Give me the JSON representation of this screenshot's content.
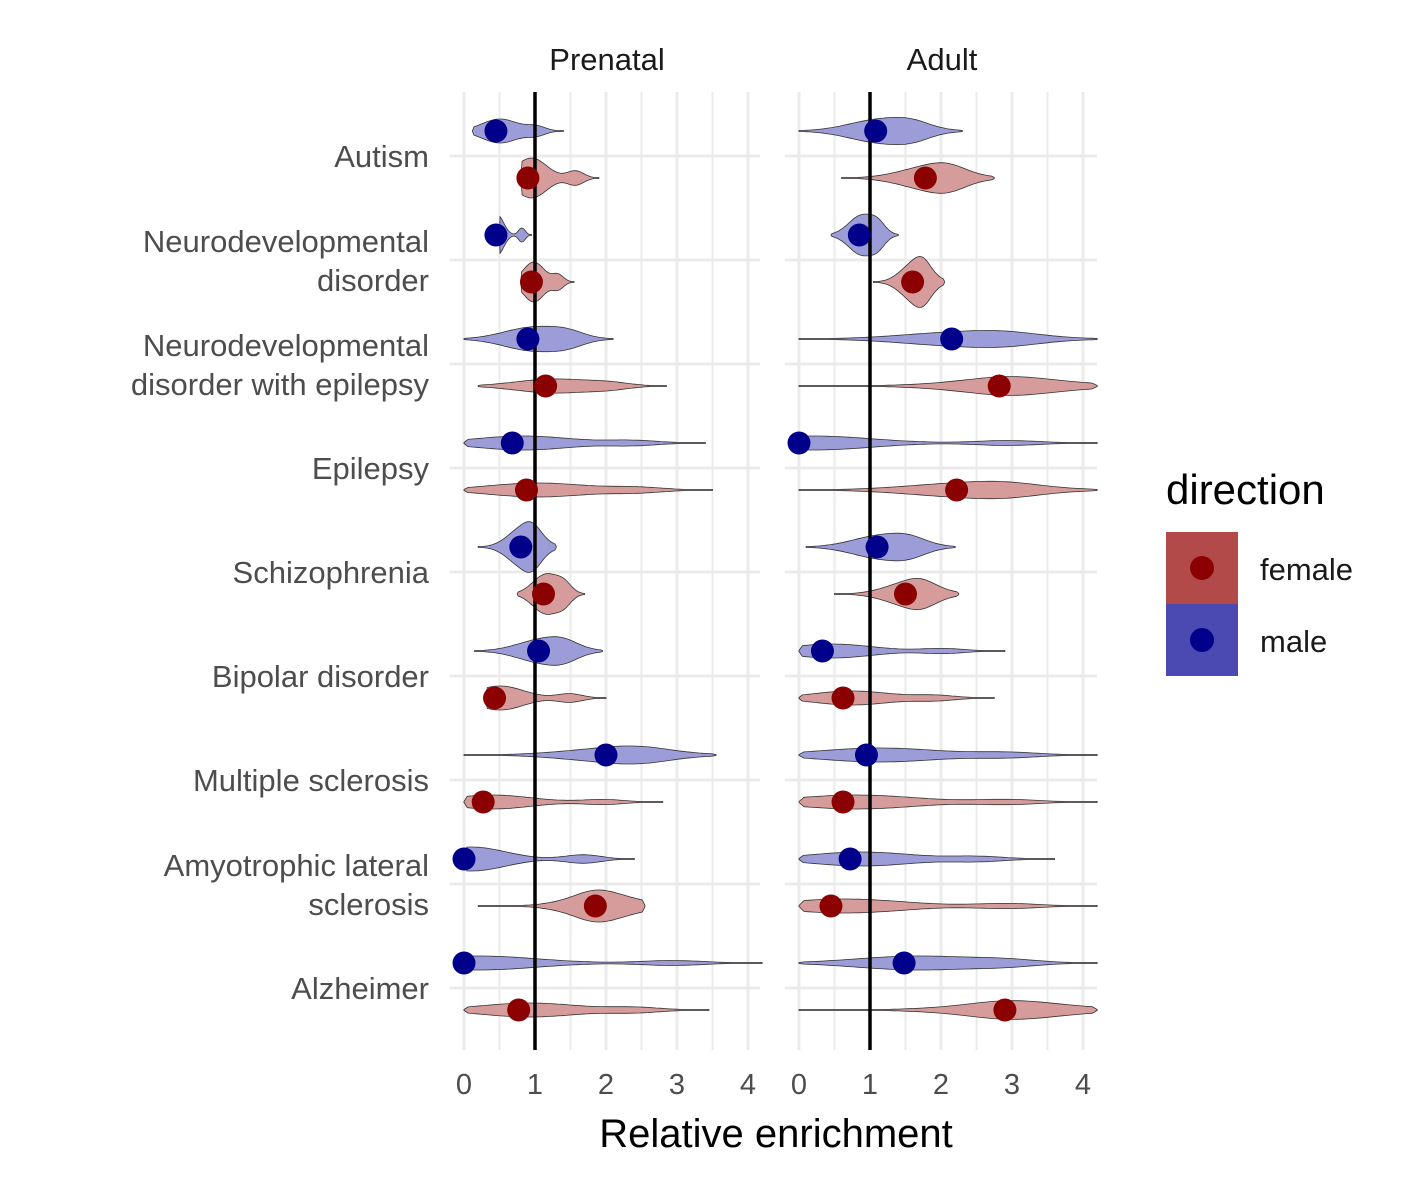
{
  "chart_data": {
    "type": "violin",
    "xlabel": "Relative enrichment",
    "xlim": [
      0,
      4.2
    ],
    "xticks": [
      0,
      1,
      2,
      3,
      4
    ],
    "reference_line": 1,
    "facets": [
      "Prenatal",
      "Adult"
    ],
    "legend": {
      "title": "direction",
      "position": "right",
      "entries": [
        {
          "label": "female",
          "fill": "#b24a4a",
          "point": "#8b0000"
        },
        {
          "label": "male",
          "fill": "#4a4ab2",
          "point": "#00008b"
        }
      ]
    },
    "categories": [
      {
        "label": [
          "Autism"
        ]
      },
      {
        "label": [
          "Neurodevelopmental",
          "disorder"
        ]
      },
      {
        "label": [
          "Neurodevelopmental",
          "disorder with epilepsy"
        ]
      },
      {
        "label": [
          "Epilepsy"
        ]
      },
      {
        "label": [
          "Schizophrenia"
        ]
      },
      {
        "label": [
          "Bipolar disorder"
        ]
      },
      {
        "label": [
          "Multiple sclerosis"
        ]
      },
      {
        "label": [
          "Amyotrophic lateral",
          "sclerosis"
        ]
      },
      {
        "label": [
          "Alzheimer"
        ]
      }
    ],
    "series": [
      {
        "name": "male",
        "facet": "Prenatal",
        "points": [
          0.45,
          0.45,
          0.9,
          0.68,
          0.8,
          1.05,
          2.0,
          0.0,
          0.0
        ],
        "ranges": [
          [
            0.12,
            1.4
          ],
          [
            0.5,
            0.95
          ],
          [
            0.0,
            2.1
          ],
          [
            0.0,
            3.4
          ],
          [
            0.2,
            1.3
          ],
          [
            0.15,
            1.95
          ],
          [
            0.0,
            3.55
          ],
          [
            0.0,
            2.4
          ],
          [
            0.0,
            4.2
          ]
        ]
      },
      {
        "name": "female",
        "facet": "Prenatal",
        "points": [
          0.9,
          0.95,
          1.15,
          0.88,
          1.12,
          0.43,
          0.27,
          1.85,
          0.77
        ],
        "ranges": [
          [
            0.8,
            1.9
          ],
          [
            0.8,
            1.55
          ],
          [
            0.2,
            2.85
          ],
          [
            0.0,
            3.5
          ],
          [
            0.75,
            1.7
          ],
          [
            0.3,
            2.0
          ],
          [
            0.0,
            2.8
          ],
          [
            0.2,
            2.55
          ],
          [
            0.0,
            3.45
          ]
        ]
      },
      {
        "name": "male",
        "facet": "Adult",
        "points": [
          1.08,
          0.85,
          2.15,
          0.0,
          1.1,
          0.33,
          0.95,
          0.72,
          1.48
        ],
        "ranges": [
          [
            0.0,
            2.3
          ],
          [
            0.45,
            1.4
          ],
          [
            0.0,
            4.2
          ],
          [
            0.0,
            4.2
          ],
          [
            0.1,
            2.2
          ],
          [
            0.0,
            2.9
          ],
          [
            0.0,
            4.2
          ],
          [
            0.0,
            3.6
          ],
          [
            0.0,
            4.2
          ]
        ]
      },
      {
        "name": "female",
        "facet": "Adult",
        "points": [
          1.78,
          1.6,
          2.82,
          2.22,
          1.5,
          0.62,
          0.62,
          0.45,
          2.9
        ],
        "ranges": [
          [
            0.6,
            2.75
          ],
          [
            1.05,
            2.05
          ],
          [
            0.0,
            4.2
          ],
          [
            0.0,
            4.2
          ],
          [
            0.5,
            2.25
          ],
          [
            0.0,
            2.75
          ],
          [
            0.0,
            4.2
          ],
          [
            0.0,
            4.2
          ],
          [
            0.0,
            4.2
          ]
        ]
      }
    ]
  }
}
